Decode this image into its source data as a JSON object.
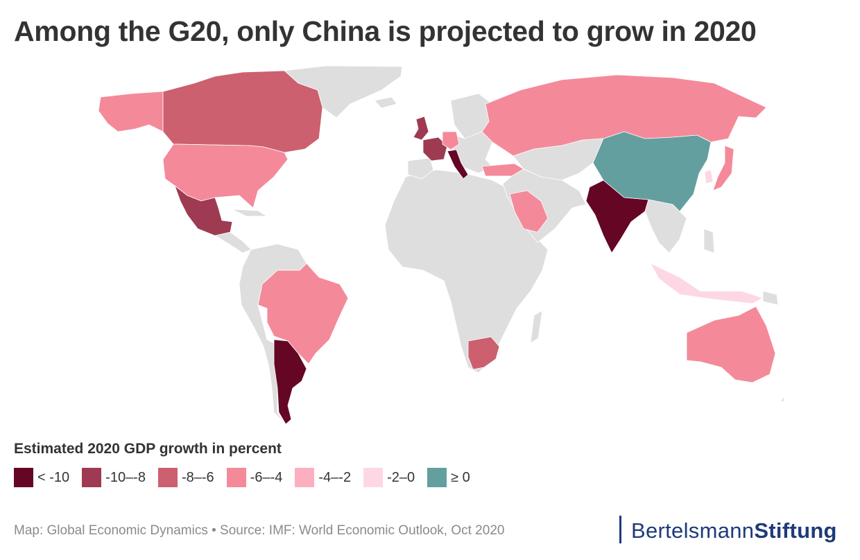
{
  "header": {
    "title": "Among the G20, only China is projected to grow in 2020"
  },
  "legend": {
    "title": "Estimated 2020 GDP growth in percent",
    "bins": [
      {
        "label": "< -10",
        "color": "#650625"
      },
      {
        "label": "-10–-8",
        "color": "#9e3a52"
      },
      {
        "label": "-8–-6",
        "color": "#cc606f"
      },
      {
        "label": "-6–-4",
        "color": "#f48a99"
      },
      {
        "label": "-4–-2",
        "color": "#fcafc0"
      },
      {
        "label": "-2–0",
        "color": "#fdd7e4"
      },
      {
        "label": "≥ 0",
        "color": "#639f9e"
      }
    ]
  },
  "map": {
    "no_data_color": "#dedede",
    "regions": [
      {
        "name": "Alaska",
        "bin": 3
      },
      {
        "name": "Canada",
        "bin": 2
      },
      {
        "name": "United States",
        "bin": 3
      },
      {
        "name": "Mexico",
        "bin": 1
      },
      {
        "name": "Brazil",
        "bin": 3
      },
      {
        "name": "Argentina",
        "bin": 0
      },
      {
        "name": "United Kingdom",
        "bin": 1
      },
      {
        "name": "France",
        "bin": 1
      },
      {
        "name": "Germany",
        "bin": 3
      },
      {
        "name": "Italy",
        "bin": 0
      },
      {
        "name": "Turkey",
        "bin": 3
      },
      {
        "name": "Russia",
        "bin": 3
      },
      {
        "name": "Saudi Arabia",
        "bin": 3
      },
      {
        "name": "India",
        "bin": 0
      },
      {
        "name": "China",
        "bin": 6
      },
      {
        "name": "Japan",
        "bin": 3
      },
      {
        "name": "South Korea",
        "bin": 5
      },
      {
        "name": "Indonesia",
        "bin": 5
      },
      {
        "name": "South Africa",
        "bin": 2
      },
      {
        "name": "Australia",
        "bin": 3
      }
    ]
  },
  "footer": {
    "source": "Map: Global Economic Dynamics • Source: IMF: World Economic Outlook, Oct 2020",
    "brand_part1": "Bertelsmann",
    "brand_part2": "Stiftung"
  }
}
